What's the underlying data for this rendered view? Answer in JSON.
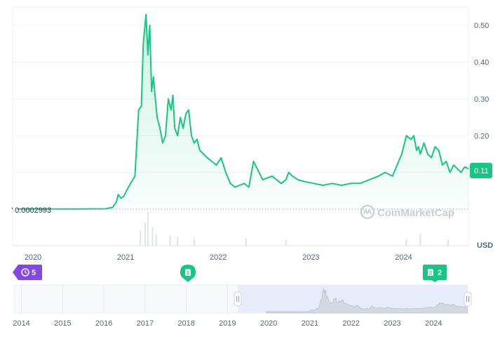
{
  "chart_data": {
    "type": "area",
    "currency_label": "USD",
    "watermark": "CoinMarketCap",
    "current_price_label": "0.11",
    "start_price_label": "0.0002993",
    "y_ticks": [
      "0.50",
      "0.40",
      "0.30",
      "0.20"
    ],
    "y_tick_values": [
      0.5,
      0.4,
      0.3,
      0.2
    ],
    "ylim": [
      0,
      0.55
    ],
    "xlim": [
      2019.9,
      2024.82
    ],
    "x_ticks": [
      "2020",
      "2021",
      "2022",
      "2023",
      "2024"
    ],
    "x_tick_values": [
      2020.12,
      2021.12,
      2022.12,
      2023.12,
      2024.12
    ],
    "series": [
      {
        "x": [
          2019.95,
          2020.3,
          2020.6,
          2020.9,
          2020.98,
          2021.02,
          2021.04,
          2021.07,
          2021.1,
          2021.15,
          2021.22,
          2021.26,
          2021.29,
          2021.31,
          2021.34,
          2021.36,
          2021.38,
          2021.4,
          2021.42,
          2021.44,
          2021.46,
          2021.49,
          2021.52,
          2021.55,
          2021.58,
          2021.61,
          2021.63,
          2021.65,
          2021.68,
          2021.71,
          2021.74,
          2021.77,
          2021.8,
          2021.83,
          2021.86,
          2021.89,
          2021.92,
          2021.96,
          2022.0,
          2022.05,
          2022.1,
          2022.15,
          2022.2,
          2022.25,
          2022.3,
          2022.35,
          2022.4,
          2022.45,
          2022.5,
          2022.6,
          2022.7,
          2022.8,
          2022.85,
          2022.88,
          2022.92,
          2022.98,
          2023.05,
          2023.15,
          2023.25,
          2023.35,
          2023.45,
          2023.55,
          2023.65,
          2023.75,
          2023.85,
          2023.92,
          2024.0,
          2024.05,
          2024.1,
          2024.15,
          2024.2,
          2024.23,
          2024.26,
          2024.28,
          2024.3,
          2024.34,
          2024.38,
          2024.42,
          2024.46,
          2024.5,
          2024.54,
          2024.58,
          2024.62,
          2024.66,
          2024.7,
          2024.74,
          2024.78,
          2024.82
        ],
        "values": [
          0.0003,
          0.0004,
          0.0006,
          0.001,
          0.005,
          0.02,
          0.04,
          0.03,
          0.035,
          0.06,
          0.09,
          0.27,
          0.28,
          0.45,
          0.53,
          0.42,
          0.5,
          0.32,
          0.36,
          0.3,
          0.25,
          0.22,
          0.18,
          0.2,
          0.3,
          0.27,
          0.31,
          0.22,
          0.2,
          0.25,
          0.22,
          0.26,
          0.27,
          0.2,
          0.18,
          0.19,
          0.16,
          0.15,
          0.14,
          0.13,
          0.12,
          0.14,
          0.1,
          0.07,
          0.06,
          0.065,
          0.07,
          0.06,
          0.13,
          0.08,
          0.09,
          0.07,
          0.08,
          0.1,
          0.09,
          0.08,
          0.075,
          0.07,
          0.065,
          0.07,
          0.065,
          0.07,
          0.07,
          0.08,
          0.09,
          0.1,
          0.09,
          0.12,
          0.15,
          0.2,
          0.19,
          0.2,
          0.16,
          0.17,
          0.15,
          0.18,
          0.15,
          0.14,
          0.17,
          0.16,
          0.12,
          0.13,
          0.1,
          0.12,
          0.11,
          0.1,
          0.115,
          0.11
        ]
      }
    ],
    "navigator": {
      "x_ticks": [
        "2014",
        "2015",
        "2016",
        "2017",
        "2018",
        "2019",
        "2020",
        "2021",
        "2022",
        "2023",
        "2024"
      ],
      "x_tick_values": [
        2014,
        2015,
        2016,
        2017,
        2018,
        2019,
        2020,
        2021,
        2022,
        2023,
        2024
      ],
      "xlim": [
        2013.82,
        2024.83
      ],
      "selection": [
        2019.25,
        2024.83
      ]
    },
    "events": [
      {
        "label": "5",
        "type": "history",
        "x": 2019.98,
        "color": "#8247e5"
      },
      {
        "label": "",
        "type": "document",
        "x": 2021.42,
        "color": "#16c784"
      },
      {
        "label": "2",
        "type": "document",
        "x": 2024.28,
        "color": "#16c784"
      }
    ],
    "volume_bars": [
      {
        "x": 2021.28,
        "value": 0.45
      },
      {
        "x": 2021.33,
        "value": 0.7
      },
      {
        "x": 2021.36,
        "value": 1.0
      },
      {
        "x": 2021.41,
        "value": 0.55
      },
      {
        "x": 2021.45,
        "value": 0.35
      },
      {
        "x": 2021.6,
        "value": 0.3
      },
      {
        "x": 2021.68,
        "value": 0.25
      },
      {
        "x": 2021.86,
        "value": 0.2
      },
      {
        "x": 2022.42,
        "value": 0.22
      },
      {
        "x": 2022.85,
        "value": 0.18
      },
      {
        "x": 2024.15,
        "value": 0.2
      },
      {
        "x": 2024.3,
        "value": 0.35
      },
      {
        "x": 2024.6,
        "value": 0.2
      }
    ],
    "colors": {
      "line": "#16c784",
      "grid": "#eff2f5",
      "label_bg": "#16c784",
      "axis_text": "#58667e",
      "event_history": "#8247e5",
      "navigator_fill": "#e8ebfa"
    }
  }
}
